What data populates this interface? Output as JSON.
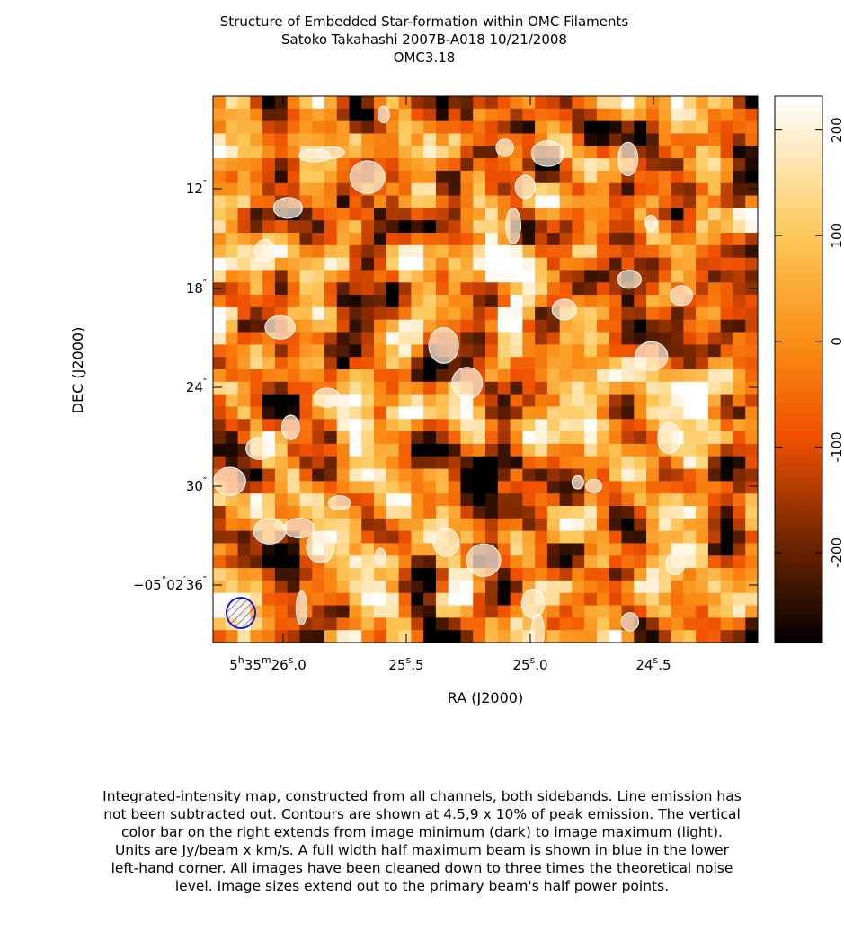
{
  "chart_data": {
    "type": "image-map",
    "title": [
      "Structure of Embedded Star-formation within OMC Filaments",
      "Satoko Takahashi   2007B-A018   10/21/2008",
      "OMC3.18"
    ],
    "x_label": "RA (J2000)",
    "y_label": "DEC (J2000)",
    "x_tick_labels": [
      [
        "5",
        "h",
        "35",
        "m",
        "26",
        "s",
        ".0"
      ],
      [
        "25",
        "s",
        ".5"
      ],
      [
        "25",
        "s",
        ".0"
      ],
      [
        "24",
        "s",
        ".5"
      ]
    ],
    "y_tick_labels": [
      [
        "12",
        "″"
      ],
      [
        "18",
        "″"
      ],
      [
        "24",
        "″"
      ],
      [
        "30",
        "″"
      ],
      [
        "−05",
        "°",
        "02",
        "′",
        "36",
        "″"
      ]
    ],
    "colorbar_lim": [
      -285,
      232
    ],
    "colorbar_ticks": [
      -200,
      -100,
      0,
      100,
      200
    ],
    "caption": [
      "Integrated-intensity map, constructed from all channels, both sidebands.  Line emission has",
      "not been subtracted out.  Contours are shown at 4.5,9 x 10% of peak emission.  The vertical",
      "color bar on the right extends from image minimum (dark) to image maximum (light).",
      "Units are Jy/beam x km/s.  A full width half maximum beam is shown in blue in the lower",
      "left-hand corner.  All images have been cleaned down to three times the theoretical noise",
      "level.  Image sizes extend out to the primary beam's half power points."
    ]
  }
}
